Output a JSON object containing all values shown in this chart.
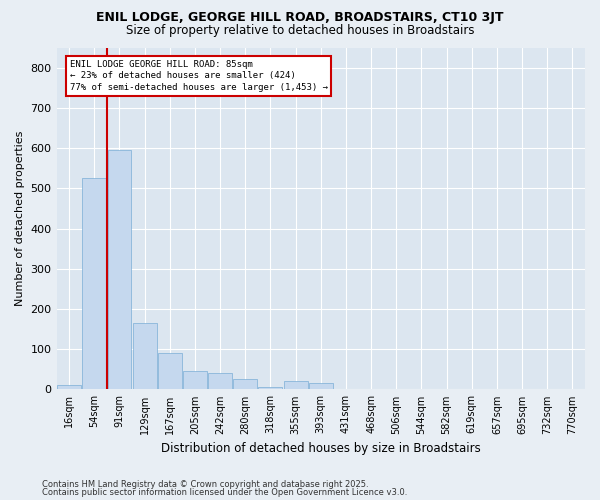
{
  "title": "ENIL LODGE, GEORGE HILL ROAD, BROADSTAIRS, CT10 3JT",
  "subtitle": "Size of property relative to detached houses in Broadstairs",
  "xlabel": "Distribution of detached houses by size in Broadstairs",
  "ylabel": "Number of detached properties",
  "footnote1": "Contains HM Land Registry data © Crown copyright and database right 2025.",
  "footnote2": "Contains public sector information licensed under the Open Government Licence v3.0.",
  "bar_labels": [
    "16sqm",
    "54sqm",
    "91sqm",
    "129sqm",
    "167sqm",
    "205sqm",
    "242sqm",
    "280sqm",
    "318sqm",
    "355sqm",
    "393sqm",
    "431sqm",
    "468sqm",
    "506sqm",
    "544sqm",
    "582sqm",
    "619sqm",
    "657sqm",
    "695sqm",
    "732sqm",
    "770sqm"
  ],
  "bar_values": [
    10,
    525,
    595,
    165,
    90,
    45,
    40,
    25,
    5,
    20,
    15,
    0,
    0,
    0,
    0,
    0,
    0,
    0,
    0,
    0,
    0
  ],
  "bar_color": "#c5d8ee",
  "bar_edge_color": "#7aaed6",
  "vline_x": 1.5,
  "vline_color": "#cc0000",
  "annotation_line1": "ENIL LODGE GEORGE HILL ROAD: 85sqm",
  "annotation_line2": "← 23% of detached houses are smaller (424)",
  "annotation_line3": "77% of semi-detached houses are larger (1,453) →",
  "ylim": [
    0,
    850
  ],
  "yticks": [
    0,
    100,
    200,
    300,
    400,
    500,
    600,
    700,
    800
  ],
  "background_color": "#e8eef4",
  "plot_background": "#dce6f0",
  "grid_color": "#ffffff",
  "title_fontsize": 9,
  "subtitle_fontsize": 8.5,
  "tick_fontsize": 7,
  "ylabel_fontsize": 8,
  "xlabel_fontsize": 8.5,
  "footnote_fontsize": 6
}
